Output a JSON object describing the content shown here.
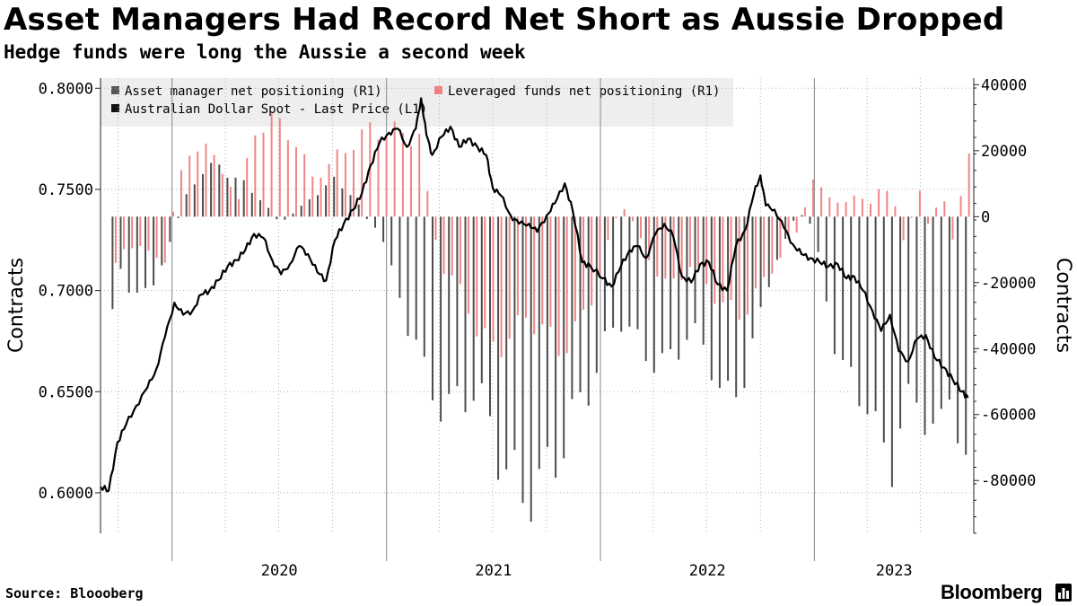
{
  "header": {
    "title": "Asset Managers Had Record Net Short as Aussie Dropped",
    "subtitle": "Hedge funds were long the Aussie a second week"
  },
  "footer": {
    "source": "Source: Bloooberg",
    "brand": "Bloomberg"
  },
  "chart_data": {
    "type": "bar",
    "x_axis": {
      "start": "2019-09-01",
      "end": "2023-09-30",
      "year_labels": [
        "2020",
        "2021",
        "2022",
        "2023"
      ]
    },
    "left_axis": {
      "label": "Contracts",
      "ylim": [
        0.58,
        0.805
      ],
      "ticks": [
        0.8,
        0.75,
        0.7,
        0.65,
        0.6
      ],
      "tick_labels": [
        "0.8000",
        "0.7500",
        "0.7000",
        "0.6500",
        "0.6000"
      ]
    },
    "right_axis": {
      "label": "Contracts",
      "ylim": [
        -96000,
        42000
      ],
      "ticks": [
        40000,
        20000,
        0,
        -20000,
        -40000,
        -60000,
        -80000
      ],
      "tick_labels": [
        "40000",
        "20000",
        "0",
        "-20000",
        "-40000",
        "-60000",
        "-80000"
      ]
    },
    "legend": {
      "placement": "top-left",
      "items": [
        {
          "label": "Asset manager net positioning (R1)",
          "color": "#555555"
        },
        {
          "label": "Leveraged funds net positioning (R1)",
          "color": "#f08080"
        },
        {
          "label": "Australian Dollar Spot - Last Price (L1)",
          "color": "#111111"
        }
      ]
    },
    "colors": {
      "asset_managers": "#4d4d4d",
      "leveraged_funds": "#f08585",
      "spot": "#000000",
      "grid": "#b0b0b0",
      "legend_bg": "#eeeeee"
    },
    "grid": true,
    "series": [
      {
        "name": "Asset manager net positioning (R1)",
        "axis": "right",
        "points": [
          [
            "2019-09-20",
            -28000
          ],
          [
            "2019-10-01",
            -17000
          ],
          [
            "2019-10-20",
            -23000
          ],
          [
            "2019-11-05",
            -20000
          ],
          [
            "2019-11-25",
            -26000
          ],
          [
            "2019-12-10",
            -15000
          ],
          [
            "2020-01-05",
            -3000
          ],
          [
            "2020-01-25",
            7000
          ],
          [
            "2020-02-10",
            12000
          ],
          [
            "2020-03-01",
            14000
          ],
          [
            "2020-03-20",
            16000
          ],
          [
            "2020-04-10",
            12000
          ],
          [
            "2020-05-01",
            10000
          ],
          [
            "2020-06-01",
            5000
          ],
          [
            "2020-07-01",
            -2000
          ],
          [
            "2020-08-01",
            2000
          ],
          [
            "2020-09-01",
            7000
          ],
          [
            "2020-10-01",
            11000
          ],
          [
            "2020-11-01",
            7000
          ],
          [
            "2020-12-01",
            -2000
          ],
          [
            "2020-12-20",
            -4000
          ],
          [
            "2021-01-10",
            -18000
          ],
          [
            "2021-01-30",
            -30000
          ],
          [
            "2021-02-20",
            -38000
          ],
          [
            "2021-03-10",
            -52000
          ],
          [
            "2021-04-01",
            -56000
          ],
          [
            "2021-04-20",
            -58000
          ],
          [
            "2021-05-10",
            -55000
          ],
          [
            "2021-05-30",
            -52000
          ],
          [
            "2021-06-20",
            -60000
          ],
          [
            "2021-07-10",
            -72000
          ],
          [
            "2021-07-30",
            -78000
          ],
          [
            "2021-08-20",
            -85000
          ],
          [
            "2021-09-10",
            -82000
          ],
          [
            "2021-09-30",
            -78000
          ],
          [
            "2021-10-20",
            -72000
          ],
          [
            "2021-11-10",
            -62000
          ],
          [
            "2021-11-30",
            -55000
          ],
          [
            "2021-12-20",
            -48000
          ],
          [
            "2022-01-10",
            -38000
          ],
          [
            "2022-01-30",
            -30000
          ],
          [
            "2022-02-20",
            -35000
          ],
          [
            "2022-03-10",
            -40000
          ],
          [
            "2022-03-30",
            -43000
          ],
          [
            "2022-04-20",
            -46000
          ],
          [
            "2022-05-10",
            -40000
          ],
          [
            "2022-05-30",
            -35000
          ],
          [
            "2022-06-20",
            -38000
          ],
          [
            "2022-07-10",
            -45000
          ],
          [
            "2022-07-30",
            -58000
          ],
          [
            "2022-08-20",
            -52000
          ],
          [
            "2022-09-10",
            -44000
          ],
          [
            "2022-09-30",
            -30000
          ],
          [
            "2022-10-20",
            -15000
          ],
          [
            "2022-11-10",
            -8000
          ],
          [
            "2022-11-30",
            1000
          ],
          [
            "2022-12-20",
            0
          ],
          [
            "2023-01-10",
            -15000
          ],
          [
            "2023-01-30",
            -35000
          ],
          [
            "2023-02-20",
            -48000
          ],
          [
            "2023-03-10",
            -52000
          ],
          [
            "2023-03-30",
            -55000
          ],
          [
            "2023-04-20",
            -70000
          ],
          [
            "2023-05-10",
            -75000
          ],
          [
            "2023-05-30",
            -60000
          ],
          [
            "2023-06-20",
            -55000
          ],
          [
            "2023-07-10",
            -60000
          ],
          [
            "2023-07-30",
            -70000
          ],
          [
            "2023-08-20",
            -50000
          ],
          [
            "2023-09-10",
            -73000
          ],
          [
            "2023-09-20",
            -86000
          ]
        ]
      },
      {
        "name": "Leveraged funds net positioning (R1)",
        "axis": "right",
        "points": [
          [
            "2019-09-20",
            -14000
          ],
          [
            "2019-10-10",
            -10000
          ],
          [
            "2019-11-01",
            -8000
          ],
          [
            "2019-11-20",
            -12000
          ],
          [
            "2019-12-10",
            -16000
          ],
          [
            "2020-01-05",
            11000
          ],
          [
            "2020-01-25",
            18000
          ],
          [
            "2020-02-15",
            25000
          ],
          [
            "2020-03-10",
            15000
          ],
          [
            "2020-04-01",
            11000
          ],
          [
            "2020-04-20",
            4000
          ],
          [
            "2020-05-10",
            26000
          ],
          [
            "2020-05-30",
            28000
          ],
          [
            "2020-06-20",
            29000
          ],
          [
            "2020-07-10",
            26000
          ],
          [
            "2020-07-30",
            20000
          ],
          [
            "2020-08-20",
            12000
          ],
          [
            "2020-09-10",
            14000
          ],
          [
            "2020-09-30",
            18000
          ],
          [
            "2020-10-20",
            21000
          ],
          [
            "2020-11-10",
            24000
          ],
          [
            "2020-11-30",
            27000
          ],
          [
            "2020-12-20",
            25000
          ],
          [
            "2021-01-10",
            26000
          ],
          [
            "2021-01-30",
            24000
          ],
          [
            "2021-02-20",
            25000
          ],
          [
            "2021-03-10",
            0
          ],
          [
            "2021-03-30",
            -15000
          ],
          [
            "2021-04-20",
            -20000
          ],
          [
            "2021-05-10",
            -25000
          ],
          [
            "2021-05-30",
            -35000
          ],
          [
            "2021-06-20",
            -40000
          ],
          [
            "2021-07-10",
            -38000
          ],
          [
            "2021-07-30",
            -36000
          ],
          [
            "2021-08-20",
            -30000
          ],
          [
            "2021-09-10",
            -33000
          ],
          [
            "2021-09-30",
            -37000
          ],
          [
            "2021-10-20",
            -40000
          ],
          [
            "2021-11-10",
            -36000
          ],
          [
            "2021-12-01",
            -28000
          ],
          [
            "2021-12-20",
            -20000
          ],
          [
            "2022-01-10",
            -6000
          ],
          [
            "2022-01-30",
            4000
          ],
          [
            "2022-02-20",
            -2000
          ],
          [
            "2022-03-10",
            -10000
          ],
          [
            "2022-03-30",
            -16000
          ],
          [
            "2022-04-20",
            -22000
          ],
          [
            "2022-05-10",
            -18000
          ],
          [
            "2022-05-30",
            -14000
          ],
          [
            "2022-06-20",
            -20000
          ],
          [
            "2022-07-10",
            -24000
          ],
          [
            "2022-07-30",
            -28000
          ],
          [
            "2022-08-20",
            -30000
          ],
          [
            "2022-09-10",
            -25000
          ],
          [
            "2022-09-30",
            -20000
          ],
          [
            "2022-10-20",
            -14000
          ],
          [
            "2022-11-10",
            -8000
          ],
          [
            "2022-11-30",
            -4000
          ],
          [
            "2022-12-20",
            12000
          ],
          [
            "2023-01-10",
            7000
          ],
          [
            "2023-01-30",
            5000
          ],
          [
            "2023-02-20",
            4000
          ],
          [
            "2023-03-10",
            7000
          ],
          [
            "2023-03-30",
            4000
          ],
          [
            "2023-04-20",
            9000
          ],
          [
            "2023-05-10",
            5000
          ],
          [
            "2023-05-30",
            -10000
          ],
          [
            "2023-06-20",
            10000
          ],
          [
            "2023-07-10",
            -4000
          ],
          [
            "2023-07-30",
            8000
          ],
          [
            "2023-08-20",
            -8000
          ],
          [
            "2023-09-10",
            18000
          ],
          [
            "2023-09-20",
            17000
          ]
        ]
      },
      {
        "name": "Australian Dollar Spot - Last Price (L1)",
        "axis": "left",
        "type": "line",
        "points": [
          [
            "2019-09-01",
            0.603
          ],
          [
            "2019-09-15",
            0.601
          ],
          [
            "2019-09-30",
            0.625
          ],
          [
            "2019-10-15",
            0.634
          ],
          [
            "2019-11-01",
            0.643
          ],
          [
            "2019-11-20",
            0.652
          ],
          [
            "2019-12-05",
            0.661
          ],
          [
            "2019-12-20",
            0.677
          ],
          [
            "2020-01-05",
            0.694
          ],
          [
            "2020-01-20",
            0.688
          ],
          [
            "2020-02-05",
            0.69
          ],
          [
            "2020-02-20",
            0.698
          ],
          [
            "2020-03-05",
            0.7
          ],
          [
            "2020-03-20",
            0.705
          ],
          [
            "2020-04-05",
            0.712
          ],
          [
            "2020-04-20",
            0.715
          ],
          [
            "2020-05-05",
            0.72
          ],
          [
            "2020-05-20",
            0.728
          ],
          [
            "2020-06-05",
            0.726
          ],
          [
            "2020-06-20",
            0.715
          ],
          [
            "2020-07-05",
            0.708
          ],
          [
            "2020-07-20",
            0.713
          ],
          [
            "2020-08-05",
            0.722
          ],
          [
            "2020-08-20",
            0.718
          ],
          [
            "2020-09-05",
            0.709
          ],
          [
            "2020-09-20",
            0.705
          ],
          [
            "2020-10-05",
            0.725
          ],
          [
            "2020-10-20",
            0.733
          ],
          [
            "2020-11-05",
            0.74
          ],
          [
            "2020-11-20",
            0.748
          ],
          [
            "2020-12-05",
            0.762
          ],
          [
            "2020-12-20",
            0.773
          ],
          [
            "2021-01-05",
            0.778
          ],
          [
            "2021-01-20",
            0.78
          ],
          [
            "2021-02-05",
            0.771
          ],
          [
            "2021-02-20",
            0.78
          ],
          [
            "2021-03-01",
            0.795
          ],
          [
            "2021-03-10",
            0.777
          ],
          [
            "2021-03-20",
            0.767
          ],
          [
            "2021-04-05",
            0.776
          ],
          [
            "2021-04-20",
            0.781
          ],
          [
            "2021-05-05",
            0.771
          ],
          [
            "2021-05-20",
            0.775
          ],
          [
            "2021-06-05",
            0.771
          ],
          [
            "2021-06-20",
            0.767
          ],
          [
            "2021-07-01",
            0.751
          ],
          [
            "2021-07-15",
            0.747
          ],
          [
            "2021-08-01",
            0.737
          ],
          [
            "2021-08-15",
            0.733
          ],
          [
            "2021-09-01",
            0.733
          ],
          [
            "2021-09-15",
            0.729
          ],
          [
            "2021-10-01",
            0.737
          ],
          [
            "2021-10-15",
            0.743
          ],
          [
            "2021-11-01",
            0.753
          ],
          [
            "2021-11-15",
            0.739
          ],
          [
            "2021-12-01",
            0.714
          ],
          [
            "2021-12-15",
            0.712
          ],
          [
            "2022-01-05",
            0.706
          ],
          [
            "2022-01-20",
            0.702
          ],
          [
            "2022-02-05",
            0.712
          ],
          [
            "2022-02-20",
            0.72
          ],
          [
            "2022-03-05",
            0.722
          ],
          [
            "2022-03-20",
            0.716
          ],
          [
            "2022-04-05",
            0.728
          ],
          [
            "2022-04-20",
            0.733
          ],
          [
            "2022-05-05",
            0.727
          ],
          [
            "2022-05-20",
            0.707
          ],
          [
            "2022-06-05",
            0.704
          ],
          [
            "2022-06-20",
            0.713
          ],
          [
            "2022-07-05",
            0.714
          ],
          [
            "2022-07-20",
            0.703
          ],
          [
            "2022-08-05",
            0.7
          ],
          [
            "2022-08-20",
            0.722
          ],
          [
            "2022-09-05",
            0.73
          ],
          [
            "2022-09-20",
            0.748
          ],
          [
            "2022-10-01",
            0.757
          ],
          [
            "2022-10-10",
            0.742
          ],
          [
            "2022-10-25",
            0.74
          ],
          [
            "2022-11-10",
            0.731
          ],
          [
            "2022-11-25",
            0.723
          ],
          [
            "2022-12-10",
            0.718
          ],
          [
            "2022-12-25",
            0.716
          ],
          [
            "2023-01-10",
            0.714
          ],
          [
            "2023-01-25",
            0.712
          ],
          [
            "2023-02-10",
            0.713
          ],
          [
            "2023-02-25",
            0.706
          ],
          [
            "2023-03-10",
            0.707
          ],
          [
            "2023-03-25",
            0.7
          ],
          [
            "2023-04-10",
            0.69
          ],
          [
            "2023-04-25",
            0.68
          ],
          [
            "2023-05-10",
            0.688
          ],
          [
            "2023-05-25",
            0.67
          ],
          [
            "2023-06-10",
            0.665
          ],
          [
            "2023-06-25",
            0.676
          ],
          [
            "2023-07-10",
            0.678
          ],
          [
            "2023-07-25",
            0.667
          ],
          [
            "2023-08-10",
            0.662
          ],
          [
            "2023-08-25",
            0.656
          ],
          [
            "2023-09-10",
            0.65
          ],
          [
            "2023-09-20",
            0.647
          ]
        ]
      }
    ]
  }
}
